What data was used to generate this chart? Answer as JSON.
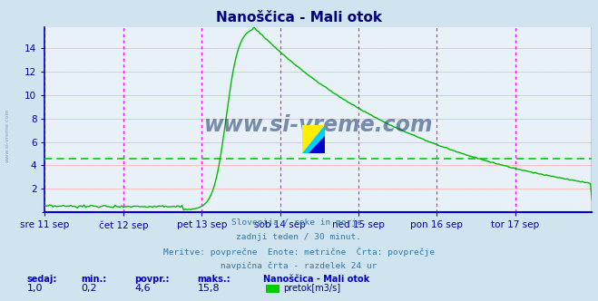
{
  "title": "Nanoščica - Mali otok",
  "title_color": "#000080",
  "bg_color": "#d0e4f0",
  "plot_bg_color": "#e8f0f8",
  "line_color": "#00bb00",
  "avg_line_color": "#00cc00",
  "grid_color_major": "#ffb0b0",
  "grid_color_minor": "#ffd0d0",
  "vline_color": "#ff00ff",
  "axis_color": "#0000aa",
  "ylim": [
    0,
    15.8
  ],
  "yticks": [
    2,
    4,
    6,
    8,
    10,
    12,
    14
  ],
  "xticklabels": [
    "sre 11 sep",
    "čet 12 sep",
    "pet 13 sep",
    "sob 14 sep",
    "ned 15 sep",
    "pon 16 sep",
    "tor 17 sep"
  ],
  "xtick_positions": [
    0,
    48,
    96,
    144,
    192,
    240,
    288
  ],
  "total_points": 336,
  "avg_value": 4.6,
  "min_value": 0.2,
  "max_value": 15.8,
  "current_value": 1.0,
  "subtitle_lines": [
    "Slovenija / reke in morje.",
    "zadnji teden / 30 minut.",
    "Meritve: povprečne  Enote: metrične  Črta: povprečje",
    "navpična črta - razdelek 24 ur"
  ],
  "subtitle_color": "#3377aa",
  "legend_label": "pretok[m3/s]",
  "legend_color": "#00cc00",
  "stats_color": "#000088",
  "stats_label_color": "#0000cc",
  "watermark": "www.si-vreme.com",
  "watermark_color": "#1a3a6a",
  "side_watermark_color": "#7a9cbf"
}
